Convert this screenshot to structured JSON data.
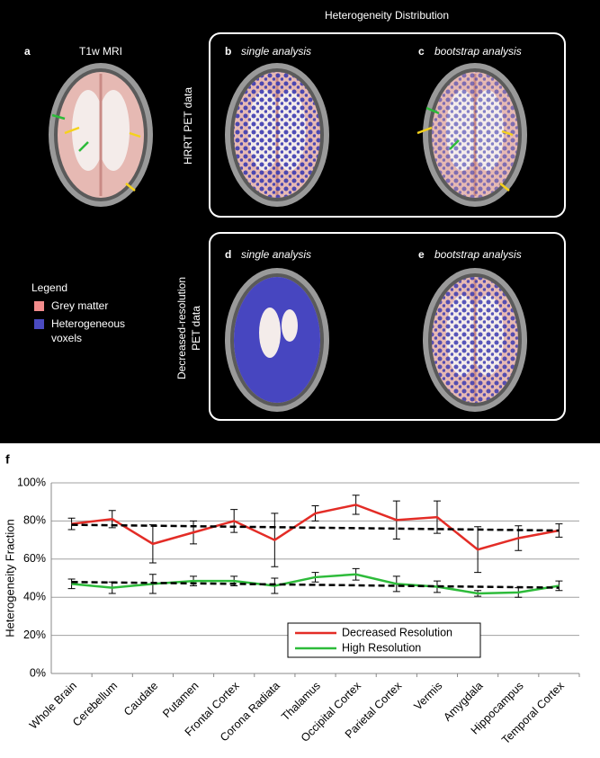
{
  "figure": {
    "title": "Heterogeneity Distribution",
    "panels": [
      {
        "label": "a",
        "caption": "T1w MRI"
      },
      {
        "label": "b",
        "caption": "single analysis"
      },
      {
        "label": "c",
        "caption": "bootstrap analysis"
      },
      {
        "label": "d",
        "caption": "single analysis"
      },
      {
        "label": "e",
        "caption": "bootstrap analysis"
      }
    ],
    "row_labels": [
      [
        "HRRT PET data"
      ],
      [
        "Decreased-resolution",
        "PET data"
      ]
    ],
    "legend": {
      "title": "Legend",
      "items": [
        [
          "Grey matter"
        ],
        [
          "Heterogeneous",
          "voxels"
        ]
      ]
    },
    "chart_label": "f"
  },
  "chart_data": {
    "type": "line",
    "y_label": "Heterogeneity Fraction",
    "categories": [
      "Whole Brain",
      "Cerebellum",
      "Caudate",
      "Putamen",
      "Frontal Cortex",
      "Corona Radiata",
      "Thalamus",
      "Occipital Cortex",
      "Parietal Cortex",
      "Vermis",
      "Amygdala",
      "Hippocampus",
      "Temporal Cortex"
    ],
    "series": [
      {
        "name": "Decreased Resolution",
        "color": "#e32c26",
        "values": [
          78.5,
          81,
          68,
          74,
          80,
          70,
          84,
          88.5,
          80.5,
          82,
          65,
          71,
          75
        ],
        "errors": [
          3,
          4.5,
          10,
          6,
          6,
          14,
          4,
          5,
          10,
          8.5,
          12,
          6.5,
          3.5
        ],
        "trend": [
          78,
          75
        ]
      },
      {
        "name": "High Resolution",
        "color": "#2dbb3a",
        "values": [
          47,
          45,
          47,
          48.5,
          48.5,
          46,
          50.5,
          52,
          47,
          45.5,
          42,
          42.5,
          46
        ],
        "errors": [
          2.5,
          3,
          5,
          2.5,
          2.5,
          4,
          2.5,
          3,
          4,
          3,
          1.5,
          2.5,
          2.5
        ],
        "trend": [
          48,
          45
        ]
      }
    ],
    "ylim": [
      0,
      100
    ],
    "yticks": [
      {
        "value": 0,
        "label": "0%"
      },
      {
        "value": 20,
        "label": "20%"
      },
      {
        "value": 40,
        "label": "40%"
      },
      {
        "value": 60,
        "label": "60%"
      },
      {
        "value": 80,
        "label": "80%"
      },
      {
        "value": 100,
        "label": "100%"
      }
    ],
    "grid": true,
    "trend_color": "#000000"
  }
}
